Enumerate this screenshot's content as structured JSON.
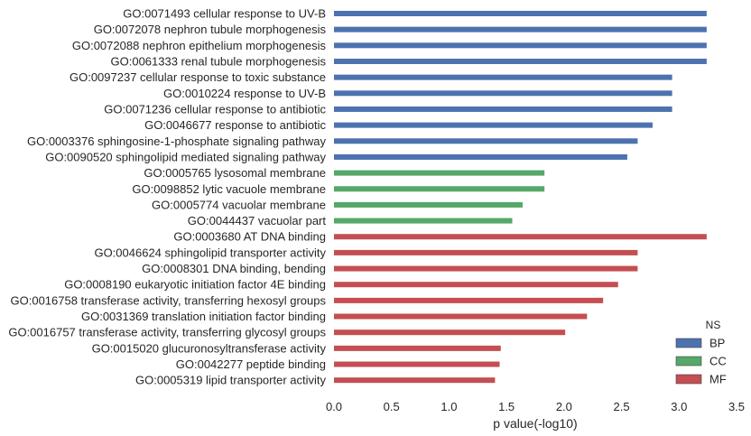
{
  "chart_data": {
    "type": "bar",
    "orientation": "horizontal",
    "xlabel": "p value(-log10)",
    "xlim": [
      0,
      3.5
    ],
    "xticks": [
      "0.0",
      "0.5",
      "1.0",
      "1.5",
      "2.0",
      "2.5",
      "3.0",
      "3.5"
    ],
    "grid": false,
    "legend": {
      "title": "NS",
      "placement": "lower-right",
      "entries": [
        {
          "name": "BP",
          "color": "#4c72b0"
        },
        {
          "name": "CC",
          "color": "#55a868"
        },
        {
          "name": "MF",
          "color": "#c44e52"
        }
      ]
    },
    "bars": [
      {
        "label": "GO:0071493 cellular response to UV-B",
        "value": 3.24,
        "group": "BP"
      },
      {
        "label": "GO:0072078 nephron tubule morphogenesis",
        "value": 3.24,
        "group": "BP"
      },
      {
        "label": "GO:0072088 nephron epithelium morphogenesis",
        "value": 3.24,
        "group": "BP"
      },
      {
        "label": "GO:0061333 renal tubule morphogenesis",
        "value": 3.24,
        "group": "BP"
      },
      {
        "label": "GO:0097237 cellular response to toxic substance",
        "value": 2.94,
        "group": "BP"
      },
      {
        "label": "GO:0010224 response to UV-B",
        "value": 2.94,
        "group": "BP"
      },
      {
        "label": "GO:0071236 cellular response to antibiotic",
        "value": 2.94,
        "group": "BP"
      },
      {
        "label": "GO:0046677 response to antibiotic",
        "value": 2.77,
        "group": "BP"
      },
      {
        "label": "GO:0003376 sphingosine-1-phosphate signaling pathway",
        "value": 2.64,
        "group": "BP"
      },
      {
        "label": "GO:0090520 sphingolipid mediated signaling pathway",
        "value": 2.55,
        "group": "BP"
      },
      {
        "label": "GO:0005765 lysosomal membrane",
        "value": 1.83,
        "group": "CC"
      },
      {
        "label": "GO:0098852 lytic vacuole membrane",
        "value": 1.83,
        "group": "CC"
      },
      {
        "label": "GO:0005774 vacuolar membrane",
        "value": 1.64,
        "group": "CC"
      },
      {
        "label": "GO:0044437 vacuolar part",
        "value": 1.55,
        "group": "CC"
      },
      {
        "label": "GO:0003680 AT DNA binding",
        "value": 3.24,
        "group": "MF"
      },
      {
        "label": "GO:0046624 sphingolipid transporter activity",
        "value": 2.64,
        "group": "MF"
      },
      {
        "label": "GO:0008301 DNA binding, bending",
        "value": 2.64,
        "group": "MF"
      },
      {
        "label": "GO:0008190 eukaryotic initiation factor 4E binding",
        "value": 2.47,
        "group": "MF"
      },
      {
        "label": "GO:0016758 transferase activity, transferring hexosyl groups",
        "value": 2.34,
        "group": "MF"
      },
      {
        "label": "GO:0031369 translation initiation factor binding",
        "value": 2.2,
        "group": "MF"
      },
      {
        "label": "GO:0016757 transferase activity, transferring glycosyl groups",
        "value": 2.01,
        "group": "MF"
      },
      {
        "label": "GO:0015020 glucuronosyltransferase activity",
        "value": 1.45,
        "group": "MF"
      },
      {
        "label": "GO:0042277 peptide binding",
        "value": 1.44,
        "group": "MF"
      },
      {
        "label": "GO:0005319 lipid transporter activity",
        "value": 1.4,
        "group": "MF"
      }
    ]
  }
}
